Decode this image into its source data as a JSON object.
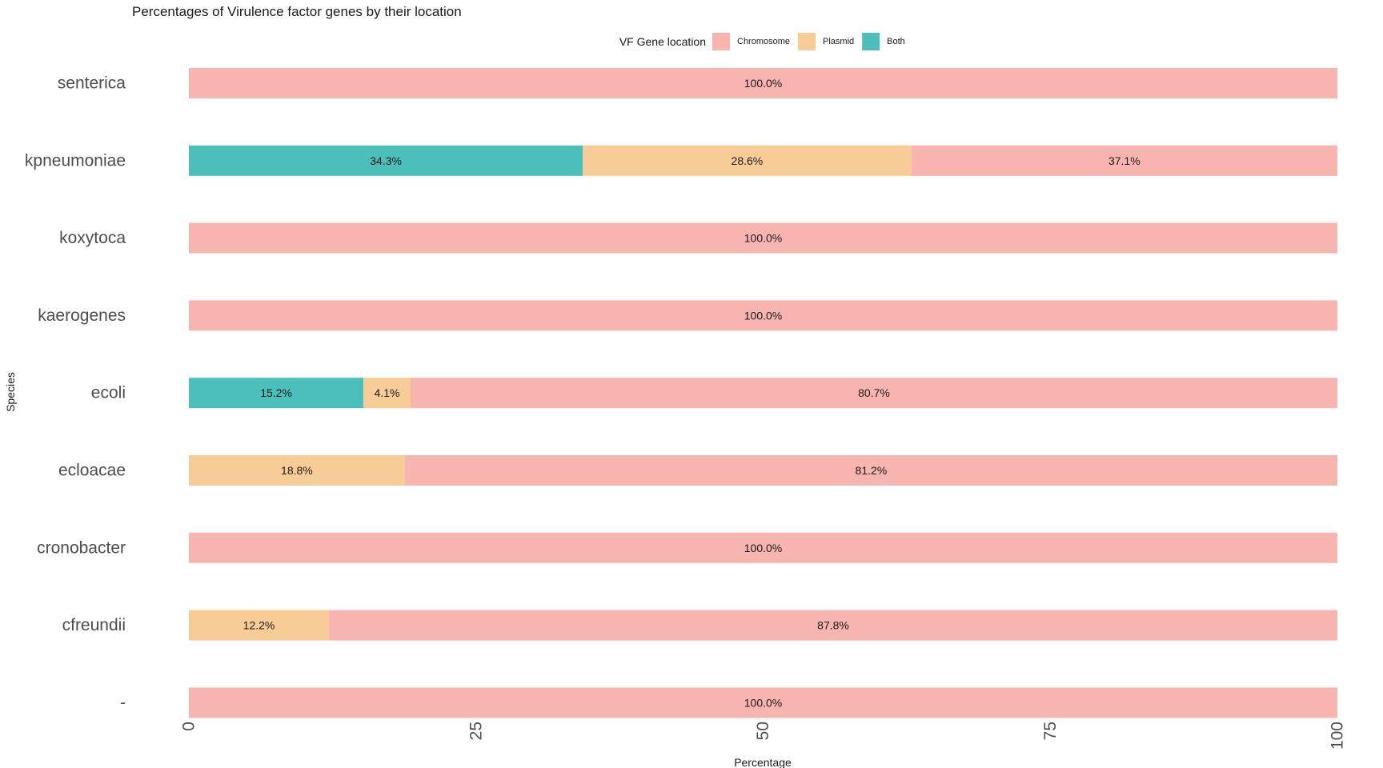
{
  "chart_data": {
    "type": "bar",
    "orientation": "horizontal",
    "stacked": true,
    "title": "Percentages of Virulence factor genes by their location",
    "xlabel": "Percentage",
    "ylabel": "Species",
    "xlim": [
      0,
      100
    ],
    "x_ticks": [
      "0",
      "25",
      "50",
      "75",
      "100"
    ],
    "grid": false,
    "legend": {
      "title": "VF Gene location",
      "position": "top-center",
      "entries": [
        {
          "name": "Chromosome",
          "color": "#F8B5B0"
        },
        {
          "name": "Plasmid",
          "color": "#F8CC97"
        },
        {
          "name": "Both",
          "color": "#4DBFBB"
        }
      ]
    },
    "categories": [
      "senterica",
      "kpneumoniae",
      "koxytoca",
      "kaerogenes",
      "ecoli",
      "ecloacae",
      "cronobacter",
      "cfreundii",
      "-"
    ],
    "stack_order": [
      "Both",
      "Plasmid",
      "Chromosome"
    ],
    "series": [
      {
        "name": "Chromosome",
        "color": "#F8B5B0",
        "values": [
          100.0,
          37.1,
          100.0,
          100.0,
          80.7,
          81.2,
          100.0,
          87.8,
          100.0
        ]
      },
      {
        "name": "Plasmid",
        "color": "#F8CC97",
        "values": [
          0,
          28.6,
          0,
          0,
          4.1,
          18.8,
          0,
          12.2,
          0
        ]
      },
      {
        "name": "Both",
        "color": "#4DBFBB",
        "values": [
          0,
          34.3,
          0,
          0,
          15.2,
          0,
          0,
          0,
          0
        ]
      }
    ],
    "data_labels": {
      "senterica": {
        "Chromosome": "100.0%"
      },
      "kpneumoniae": {
        "Both": "34.3%",
        "Plasmid": "28.6%",
        "Chromosome": "37.1%"
      },
      "koxytoca": {
        "Chromosome": "100.0%"
      },
      "kaerogenes": {
        "Chromosome": "100.0%"
      },
      "ecoli": {
        "Both": "15.2%",
        "Plasmid": "4.1%",
        "Chromosome": "80.7%"
      },
      "ecloacae": {
        "Plasmid": "18.8%",
        "Chromosome": "81.2%"
      },
      "cronobacter": {
        "Chromosome": "100.0%"
      },
      "cfreundii": {
        "Plasmid": "12.2%",
        "Chromosome": "87.8%"
      },
      "-": {
        "Chromosome": "100.0%"
      }
    }
  }
}
